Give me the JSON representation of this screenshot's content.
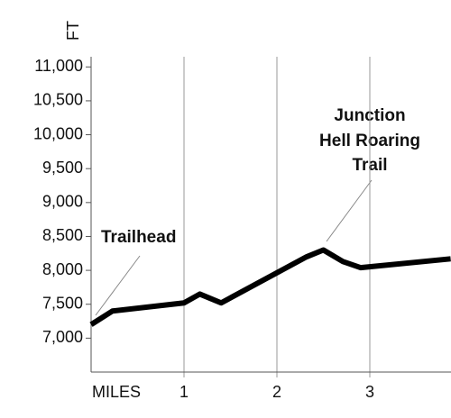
{
  "chart_data": {
    "type": "line",
    "y_label": "FT",
    "x_label": "MILES",
    "x": [
      0,
      0.23,
      1.0,
      1.17,
      1.4,
      2.32,
      2.5,
      2.71,
      2.9,
      3.87
    ],
    "values": [
      7200,
      7400,
      7520,
      7650,
      7520,
      8200,
      8300,
      8130,
      8040,
      8170
    ],
    "color": "#000000",
    "xlim": [
      0,
      3.87
    ],
    "xticks": [
      1,
      2,
      3
    ],
    "ylim": [
      6500,
      11150
    ],
    "yticks": [
      {
        "value": 7000,
        "label": "7,000"
      },
      {
        "value": 7500,
        "label": "7,500"
      },
      {
        "value": 8000,
        "label": "8,000"
      },
      {
        "value": 8500,
        "label": "8,500"
      },
      {
        "value": 9000,
        "label": "9,000"
      },
      {
        "value": 9500,
        "label": "9,500"
      },
      {
        "value": 10000,
        "label": "10,000"
      },
      {
        "value": 10500,
        "label": "10,500"
      },
      {
        "value": 11000,
        "label": "11,000"
      }
    ],
    "annotations": [
      {
        "text": "Trailhead"
      },
      {
        "text": [
          "Junction",
          "Hell Roaring",
          "Trail"
        ]
      }
    ]
  }
}
